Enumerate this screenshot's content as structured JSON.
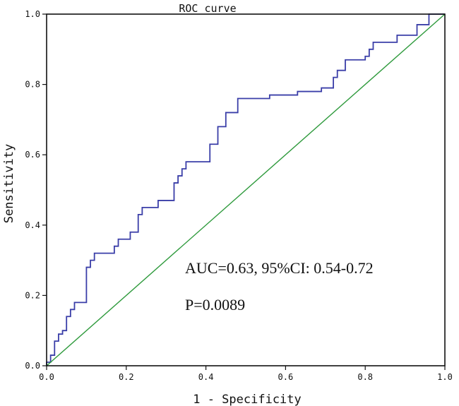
{
  "chart_data": {
    "type": "line",
    "title": "ROC curve",
    "xlabel": "1 - Specificity",
    "ylabel": "Sensitivity",
    "xlim": [
      0,
      1
    ],
    "ylim": [
      0,
      1
    ],
    "xticks": [
      "0.0",
      "0.2",
      "0.4",
      "0.6",
      "0.8",
      "1.0"
    ],
    "yticks": [
      "0.0",
      "0.2",
      "0.4",
      "0.6",
      "0.8",
      "1.0"
    ],
    "grid": false,
    "annotations": [
      "AUC=0.63, 95%CI: 0.54-0.72",
      "P=0.0089"
    ],
    "series": [
      {
        "color": "#3a3ea8",
        "x": [
          0,
          0,
          0.01,
          0.01,
          0.02,
          0.02,
          0.03,
          0.03,
          0.04,
          0.04,
          0.05,
          0.05,
          0.06,
          0.06,
          0.07,
          0.07,
          0.1,
          0.1,
          0.11,
          0.11,
          0.12,
          0.12,
          0.17,
          0.17,
          0.18,
          0.18,
          0.21,
          0.21,
          0.23,
          0.23,
          0.24,
          0.24,
          0.28,
          0.28,
          0.32,
          0.32,
          0.33,
          0.33,
          0.34,
          0.34,
          0.35,
          0.35,
          0.41,
          0.41,
          0.43,
          0.43,
          0.45,
          0.45,
          0.48,
          0.48,
          0.56,
          0.56,
          0.63,
          0.63,
          0.69,
          0.69,
          0.72,
          0.72,
          0.73,
          0.73,
          0.75,
          0.75,
          0.8,
          0.8,
          0.81,
          0.81,
          0.82,
          0.82,
          0.88,
          0.88,
          0.93,
          0.93,
          0.96,
          0.96,
          1.0
        ],
        "y": [
          0,
          0.01,
          0.01,
          0.03,
          0.03,
          0.07,
          0.07,
          0.09,
          0.09,
          0.1,
          0.1,
          0.14,
          0.14,
          0.16,
          0.16,
          0.18,
          0.18,
          0.28,
          0.28,
          0.3,
          0.3,
          0.32,
          0.32,
          0.34,
          0.34,
          0.36,
          0.36,
          0.38,
          0.38,
          0.43,
          0.43,
          0.45,
          0.45,
          0.47,
          0.47,
          0.52,
          0.52,
          0.54,
          0.54,
          0.56,
          0.56,
          0.58,
          0.58,
          0.63,
          0.63,
          0.68,
          0.68,
          0.72,
          0.72,
          0.76,
          0.76,
          0.77,
          0.77,
          0.78,
          0.78,
          0.79,
          0.79,
          0.82,
          0.82,
          0.84,
          0.84,
          0.87,
          0.87,
          0.88,
          0.88,
          0.9,
          0.9,
          0.92,
          0.92,
          0.94,
          0.94,
          0.97,
          0.97,
          1.0,
          1.0
        ]
      },
      {
        "color": "#2e9a3c",
        "x": [
          0,
          1
        ],
        "y": [
          0,
          1
        ]
      }
    ]
  }
}
